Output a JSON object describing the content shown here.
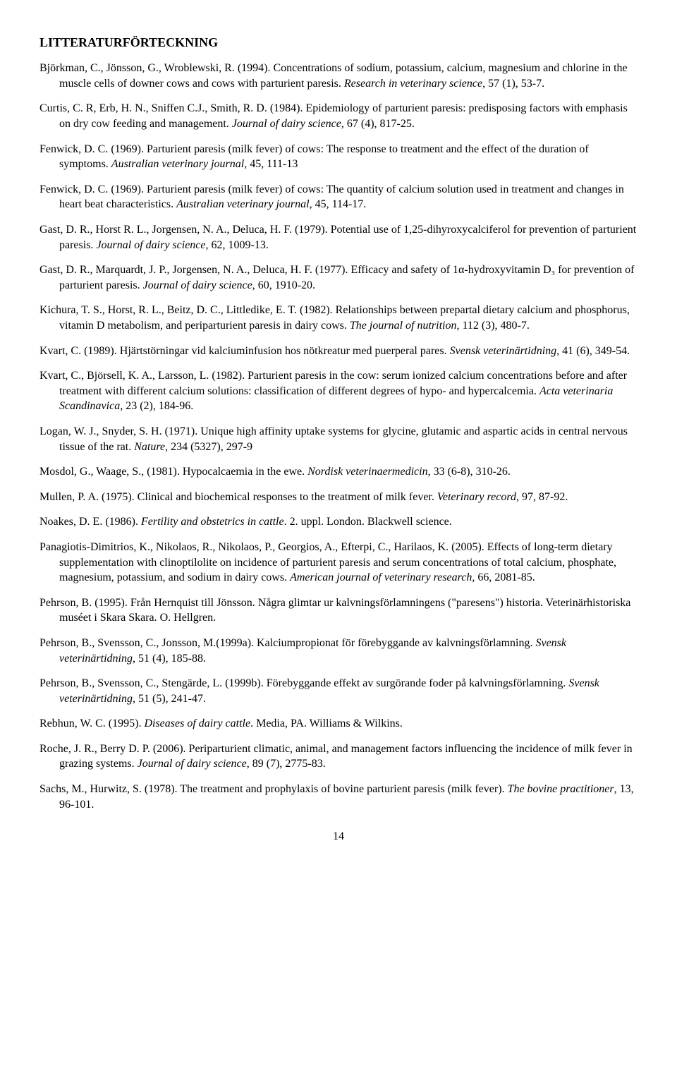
{
  "heading": "LITTERATURFÖRTECKNING",
  "page_number": "14",
  "references": [
    [
      {
        "t": "Björkman, C., Jönsson, G., Wroblewski, R. (1994). Concentrations of sodium, potassium, calcium, magnesium and chlorine in the muscle cells of downer cows and cows with parturient paresis. ",
        "i": false
      },
      {
        "t": "Research in veterinary science",
        "i": true
      },
      {
        "t": ", 57 (1), 53-7.",
        "i": false
      }
    ],
    [
      {
        "t": "Curtis, C. R, Erb, H. N., Sniffen C.J., Smith, R. D. (1984). Epidemiology of parturient paresis: predisposing factors with emphasis on dry cow feeding and management. ",
        "i": false
      },
      {
        "t": "Journal of dairy science",
        "i": true
      },
      {
        "t": ", 67 (4), 817-25.",
        "i": false
      }
    ],
    [
      {
        "t": "Fenwick, D. C. (1969). Parturient paresis (milk fever) of cows: The response to treatment and the effect of the duration of symptoms. ",
        "i": false
      },
      {
        "t": "Australian veterinary journal",
        "i": true
      },
      {
        "t": ", 45, 111-13",
        "i": false
      }
    ],
    [
      {
        "t": "Fenwick, D. C. (1969). Parturient paresis (milk fever) of cows: The quantity of calcium solution used in treatment and changes in heart beat characteristics. ",
        "i": false
      },
      {
        "t": "Australian veterinary journal",
        "i": true
      },
      {
        "t": ", 45, 114-17.",
        "i": false
      }
    ],
    [
      {
        "t": "Gast, D. R., Horst R. L., Jorgensen, N. A., Deluca, H. F. (1979). Potential use of 1,25-dihyroxycalciferol for prevention of parturient paresis. ",
        "i": false
      },
      {
        "t": "Journal of dairy science",
        "i": true
      },
      {
        "t": ", 62, 1009-13.",
        "i": false
      }
    ],
    [
      {
        "t": "Gast, D. R., Marquardt, J. P., Jorgensen, N. A., Deluca, H. F. (1977). Efficacy and safety of 1α-hydroxyvitamin D₃ for prevention of parturient paresis. ",
        "i": false
      },
      {
        "t": "Journal of dairy science",
        "i": true
      },
      {
        "t": ", 60, 1910-20.",
        "i": false
      }
    ],
    [
      {
        "t": "Kichura, T. S., Horst, R. L., Beitz, D. C., Littledike, E. T. (1982). Relationships between prepartal dietary calcium and phosphorus, vitamin D metabolism, and periparturient paresis in dairy cows. ",
        "i": false
      },
      {
        "t": "The journal of nutrition",
        "i": true
      },
      {
        "t": ", 112 (3), 480-7.",
        "i": false
      }
    ],
    [
      {
        "t": "Kvart, C. (1989). Hjärtstörningar vid kalciuminfusion hos nötkreatur med puerperal pares. ",
        "i": false
      },
      {
        "t": "Svensk veterinärtidning",
        "i": true
      },
      {
        "t": ", 41 (6), 349-54.",
        "i": false
      }
    ],
    [
      {
        "t": "Kvart, C., Björsell, K. A., Larsson, L. (1982). Parturient paresis in the cow: serum ionized calcium concentrations before and after treatment with different calcium solutions: classification of different degrees of hypo- and hypercalcemia. ",
        "i": false
      },
      {
        "t": "Acta veterinaria Scandinavica",
        "i": true
      },
      {
        "t": ", 23 (2), 184-96.",
        "i": false
      }
    ],
    [
      {
        "t": "Logan, W. J., Snyder, S. H. (1971). Unique high affinity uptake systems for glycine, glutamic and aspartic acids in central nervous tissue of the rat. ",
        "i": false
      },
      {
        "t": "Nature",
        "i": true
      },
      {
        "t": ", 234 (5327), 297-9",
        "i": false
      }
    ],
    [
      {
        "t": "Mosdol, G., Waage, S., (1981). Hypocalcaemia in the ewe. ",
        "i": false
      },
      {
        "t": "Nordisk veterinaermedicin",
        "i": true
      },
      {
        "t": ", 33 (6-8), 310-26.",
        "i": false
      }
    ],
    [
      {
        "t": "Mullen, P. A. (1975). Clinical and biochemical responses to the treatment of milk fever. ",
        "i": false
      },
      {
        "t": "Veterinary record",
        "i": true
      },
      {
        "t": ", 97, 87-92.",
        "i": false
      }
    ],
    [
      {
        "t": "Noakes, D. E. (1986). ",
        "i": false
      },
      {
        "t": "Fertility and obstetrics in cattle",
        "i": true
      },
      {
        "t": ". 2. uppl. London. Blackwell science.",
        "i": false
      }
    ],
    [
      {
        "t": "Panagiotis-Dimitrios, K., Nikolaos, R., Nikolaos, P., Georgios, A., Efterpi, C., Harilaos, K. (2005). Effects of long-term dietary supplementation with clinoptilolite on incidence of parturient paresis and serum concentrations of total calcium, phosphate, magnesium, potassium, and sodium in dairy cows. ",
        "i": false
      },
      {
        "t": "American journal of veterinary research",
        "i": true
      },
      {
        "t": ", 66, 2081-85.",
        "i": false
      }
    ],
    [
      {
        "t": "Pehrson, B. (1995). Från Hernquist till Jönsson. Några glimtar ur kalvningsförlamningens (\"paresens\") historia. Veterinärhistoriska muséet i Skara Skara. O. Hellgren.",
        "i": false
      }
    ],
    [
      {
        "t": "Pehrson, B., Svensson, C.,  Jonsson, M.(1999a). Kalciumpropionat för förebyggande av kalvningsförlamning. ",
        "i": false
      },
      {
        "t": "Svensk veterinärtidning",
        "i": true
      },
      {
        "t": ", 51 (4), 185-88.",
        "i": false
      }
    ],
    [
      {
        "t": "Pehrson, B., Svensson, C., Stengärde, L. (1999b). Förebyggande effekt av surgörande foder på kalvningsförlamning. ",
        "i": false
      },
      {
        "t": "Svensk veterinärtidning",
        "i": true
      },
      {
        "t": ", 51 (5), 241-47.",
        "i": false
      }
    ],
    [
      {
        "t": "Rebhun, W. C. (1995). ",
        "i": false
      },
      {
        "t": "Diseases of dairy cattle",
        "i": true
      },
      {
        "t": ". Media, PA. Williams & Wilkins.",
        "i": false
      }
    ],
    [
      {
        "t": "Roche, J. R., Berry D. P. (2006). Periparturient climatic, animal, and management factors influencing the incidence of milk fever in grazing systems. ",
        "i": false
      },
      {
        "t": "Journal of dairy science",
        "i": true
      },
      {
        "t": ", 89 (7), 2775-83.",
        "i": false
      }
    ],
    [
      {
        "t": "Sachs, M., Hurwitz, S. (1978). The treatment and prophylaxis of bovine parturient paresis (milk fever). ",
        "i": false
      },
      {
        "t": "The bovine practitioner",
        "i": true
      },
      {
        "t": ", 13, 96-101.",
        "i": false
      }
    ]
  ]
}
